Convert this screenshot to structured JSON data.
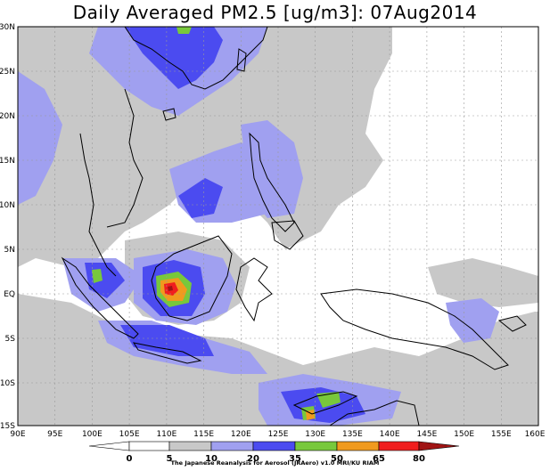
{
  "title": "Daily Averaged PM2.5 [ug/m3]: 07Aug2014",
  "credit": "The Japanese Reanalysis for Aerosol (JRAero) v1.0 MRI/KU RIAM",
  "y_ticks": [
    "30N",
    "25N",
    "20N",
    "15N",
    "10N",
    "5N",
    "EQ",
    "5S",
    "10S",
    "15S"
  ],
  "x_ticks": [
    "90E",
    "95E",
    "100E",
    "105E",
    "110E",
    "115E",
    "120E",
    "125E",
    "130E",
    "135E",
    "140E",
    "145E",
    "150E",
    "155E",
    "160E"
  ],
  "colorbar": {
    "levels": [
      "0",
      "5",
      "10",
      "20",
      "35",
      "50",
      "65",
      "80"
    ],
    "colors": [
      "#ffffff",
      "#ffffff",
      "#c8c8c8",
      "#a0a0f0",
      "#4b4bf0",
      "#78c83c",
      "#f09a1e",
      "#f01e1e",
      "#a01414"
    ]
  }
}
